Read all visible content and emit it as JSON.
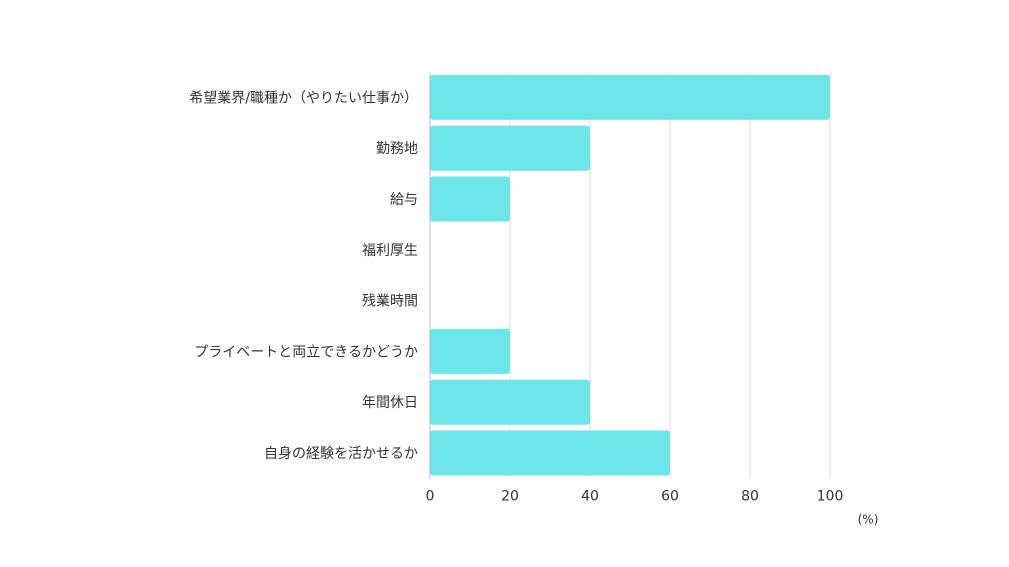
{
  "chart_data": {
    "type": "bar",
    "orientation": "horizontal",
    "categories": [
      "希望業界/職種か（やりたい仕事か）",
      "勤務地",
      "給与",
      "福利厚生",
      "残業時間",
      "プライベートと両立できるかどうか",
      "年間休日",
      "自身の経験を活かせるか"
    ],
    "values": [
      100,
      40,
      20,
      0,
      0,
      20,
      40,
      60
    ],
    "xlim": [
      0,
      100
    ],
    "x_ticks": [
      0,
      20,
      40,
      60,
      80,
      100
    ],
    "x_unit": "(%)",
    "grid": true,
    "legend": "none",
    "title": "",
    "xlabel": "",
    "ylabel": "",
    "colors": {
      "bar": "#6de6ea",
      "grid": "#dddddd",
      "axis": "#bbbbbb",
      "text": "#333333"
    }
  }
}
